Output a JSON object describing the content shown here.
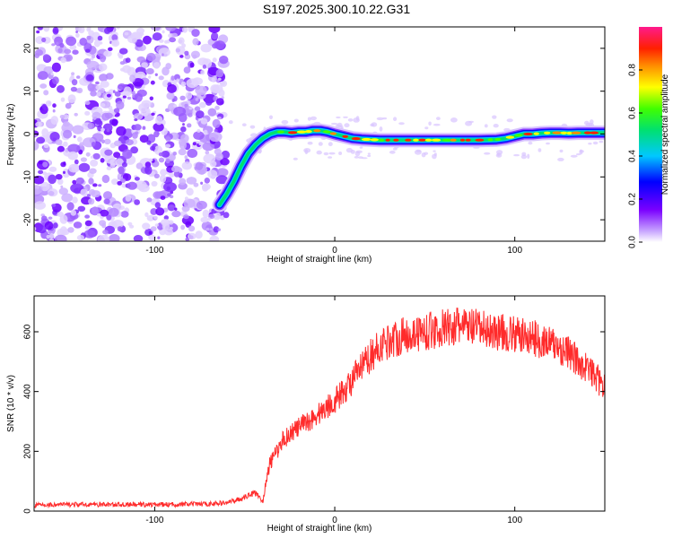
{
  "title": "S197.2025.300.10.22.G31",
  "chart_data": [
    {
      "type": "heatmap",
      "name": "spectrogram",
      "xlabel": "Height of straight line (km)",
      "ylabel": "Frequency (Hz)",
      "xlim": [
        -167,
        150
      ],
      "ylim": [
        -25,
        25
      ],
      "xticks": [
        -100,
        0,
        100
      ],
      "xtick_labels": [
        "-100",
        "0",
        "100"
      ],
      "yticks": [
        -20,
        -10,
        0,
        10,
        20
      ],
      "ytick_labels": [
        "-20",
        "-10",
        "0",
        "10",
        "20"
      ],
      "noise_region_x": [
        -167,
        -60
      ],
      "ridge": {
        "x": [
          -64,
          -60,
          -56,
          -52,
          -48,
          -44,
          -40,
          -36,
          -32,
          -28,
          -24,
          -20,
          -16,
          -12,
          -8,
          -4,
          0,
          5,
          10,
          15,
          20,
          25,
          30,
          40,
          50,
          60,
          70,
          80,
          90,
          95,
          100,
          105,
          110,
          115,
          120,
          125,
          130,
          135,
          140,
          145,
          150
        ],
        "y": [
          -16.5,
          -14,
          -11,
          -7.5,
          -4.5,
          -2.5,
          -1,
          0,
          0.5,
          0.5,
          0.3,
          0.5,
          0.5,
          0.8,
          0.8,
          0.5,
          0,
          -0.5,
          -1,
          -1.2,
          -1.3,
          -1.4,
          -1.4,
          -1.4,
          -1.4,
          -1.4,
          -1.4,
          -1.4,
          -1.3,
          -1,
          -0.5,
          0,
          0,
          0.2,
          0.3,
          0.3,
          0.2,
          0.3,
          0.3,
          0.3,
          0.3
        ]
      },
      "colorbar": {
        "label": "Normalized spectral amplitude",
        "range": [
          0,
          1
        ],
        "ticks": [
          0,
          0.2,
          0.4,
          0.6,
          0.8
        ],
        "tick_labels": [
          "0.0",
          "0.2",
          "0.4",
          "0.6",
          "0.8"
        ],
        "colormap": "rainbow (purple-blue-cyan-green-yellow-orange-red-magenta)"
      }
    },
    {
      "type": "line",
      "name": "snr",
      "xlabel": "Height of straight line (km)",
      "ylabel": "SNR (10 * v/v)",
      "xlim": [
        -167,
        150
      ],
      "ylim": [
        0,
        720
      ],
      "xticks": [
        -100,
        0,
        100
      ],
      "xtick_labels": [
        "-100",
        "0",
        "100"
      ],
      "yticks": [
        0,
        200,
        400,
        600
      ],
      "ytick_labels": [
        "0",
        "200",
        "400",
        "600"
      ],
      "color": "#ff2b2b",
      "series": [
        {
          "name": "SNR",
          "x": [
            -167,
            -150,
            -130,
            -110,
            -90,
            -70,
            -60,
            -50,
            -45,
            -42,
            -40,
            -38,
            -36,
            -34,
            -32,
            -30,
            -25,
            -20,
            -15,
            -10,
            -5,
            0,
            5,
            10,
            15,
            20,
            25,
            30,
            35,
            40,
            50,
            60,
            70,
            80,
            90,
            100,
            110,
            120,
            130,
            135,
            140,
            145,
            150
          ],
          "y": [
            20,
            22,
            22,
            22,
            22,
            24,
            28,
            45,
            65,
            50,
            30,
            100,
            160,
            180,
            200,
            230,
            260,
            280,
            300,
            320,
            345,
            370,
            400,
            440,
            480,
            520,
            550,
            570,
            580,
            590,
            600,
            610,
            620,
            610,
            600,
            590,
            580,
            560,
            530,
            500,
            480,
            450,
            410
          ]
        }
      ]
    }
  ]
}
